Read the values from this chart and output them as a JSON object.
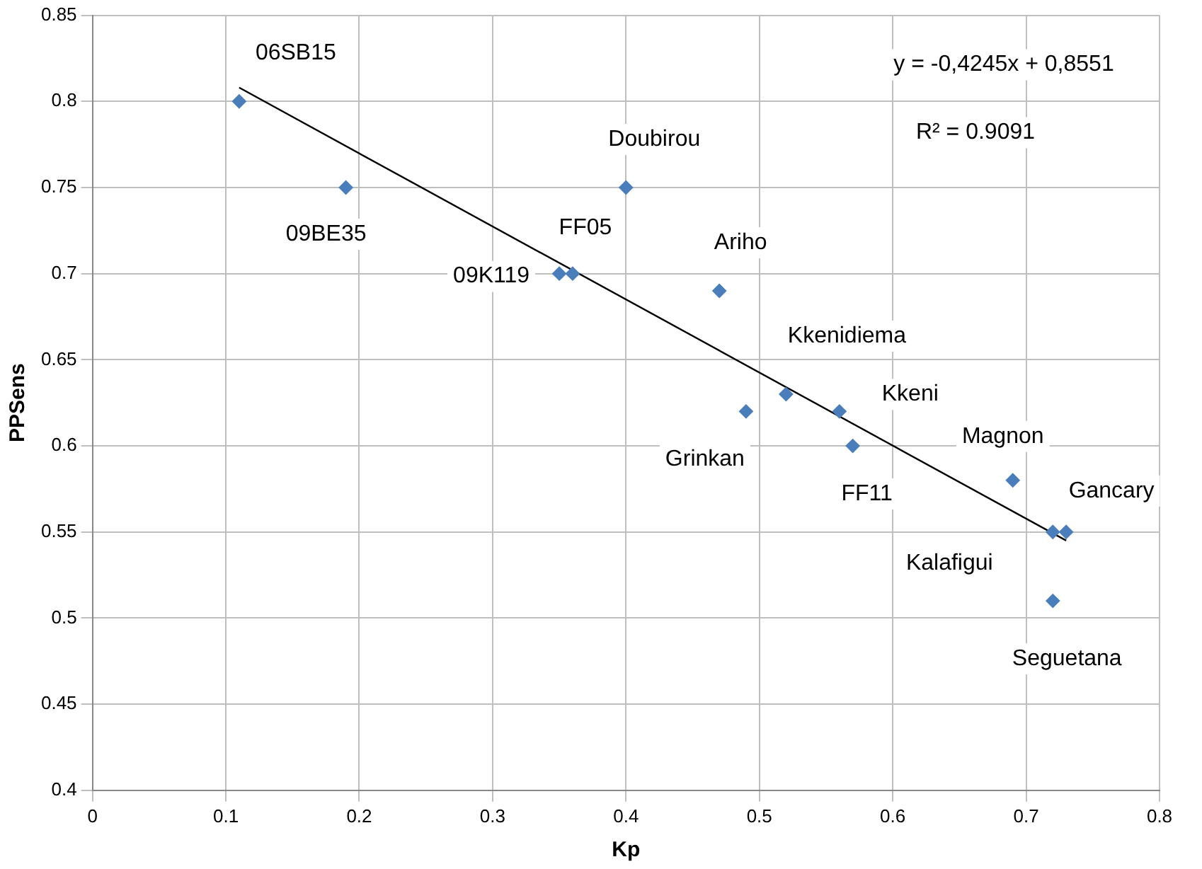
{
  "chart_data": {
    "type": "scatter",
    "xlabel": "Kp",
    "ylabel": "PPSens",
    "xlim": [
      0,
      0.8
    ],
    "ylim": [
      0.4,
      0.85
    ],
    "xticks": [
      0,
      0.1,
      0.2,
      0.3,
      0.4,
      0.5,
      0.6,
      0.7,
      0.8
    ],
    "yticks": [
      0.4,
      0.45,
      0.5,
      0.55,
      0.6,
      0.65,
      0.7,
      0.75,
      0.8,
      0.85
    ],
    "grid": true,
    "legend": false,
    "marker": "diamond",
    "series": [
      {
        "type": "scatter",
        "color": "#4a7ebb",
        "x": [
          0.11,
          0.19,
          0.35,
          0.36,
          0.4,
          0.47,
          0.49,
          0.52,
          0.56,
          0.57,
          0.69,
          0.72,
          0.72,
          0.73
        ],
        "values": [
          0.8,
          0.75,
          0.7,
          0.7,
          0.75,
          0.69,
          0.62,
          0.63,
          0.62,
          0.6,
          0.58,
          0.55,
          0.51,
          0.55
        ]
      },
      {
        "type": "line",
        "color": "#000000",
        "x": [
          0.11,
          0.73
        ],
        "values": [
          0.808,
          0.545
        ],
        "marker": "none"
      }
    ],
    "annotations": [
      {
        "text": "06SB15",
        "x": 0.11,
        "y": 0.8
      },
      {
        "text": "09BE35",
        "x": 0.19,
        "y": 0.75
      },
      {
        "text": "09K119",
        "x": 0.35,
        "y": 0.7
      },
      {
        "text": "FF05",
        "x": 0.36,
        "y": 0.7
      },
      {
        "text": "Doubirou",
        "x": 0.4,
        "y": 0.75
      },
      {
        "text": "Ariho",
        "x": 0.47,
        "y": 0.69
      },
      {
        "text": "Grinkan",
        "x": 0.49,
        "y": 0.62
      },
      {
        "text": "Kkenidiema",
        "x": 0.52,
        "y": 0.63
      },
      {
        "text": "Kkeni",
        "x": 0.56,
        "y": 0.62
      },
      {
        "text": "FF11",
        "x": 0.57,
        "y": 0.6
      },
      {
        "text": "Magnon",
        "x": 0.69,
        "y": 0.58
      },
      {
        "text": "Kalafigui",
        "x": 0.72,
        "y": 0.55
      },
      {
        "text": "Seguetana",
        "x": 0.72,
        "y": 0.51
      },
      {
        "text": "Gancary",
        "x": 0.73,
        "y": 0.55
      },
      "y = -0,4245x + 0,8551",
      "R² = 0.9091"
    ]
  }
}
